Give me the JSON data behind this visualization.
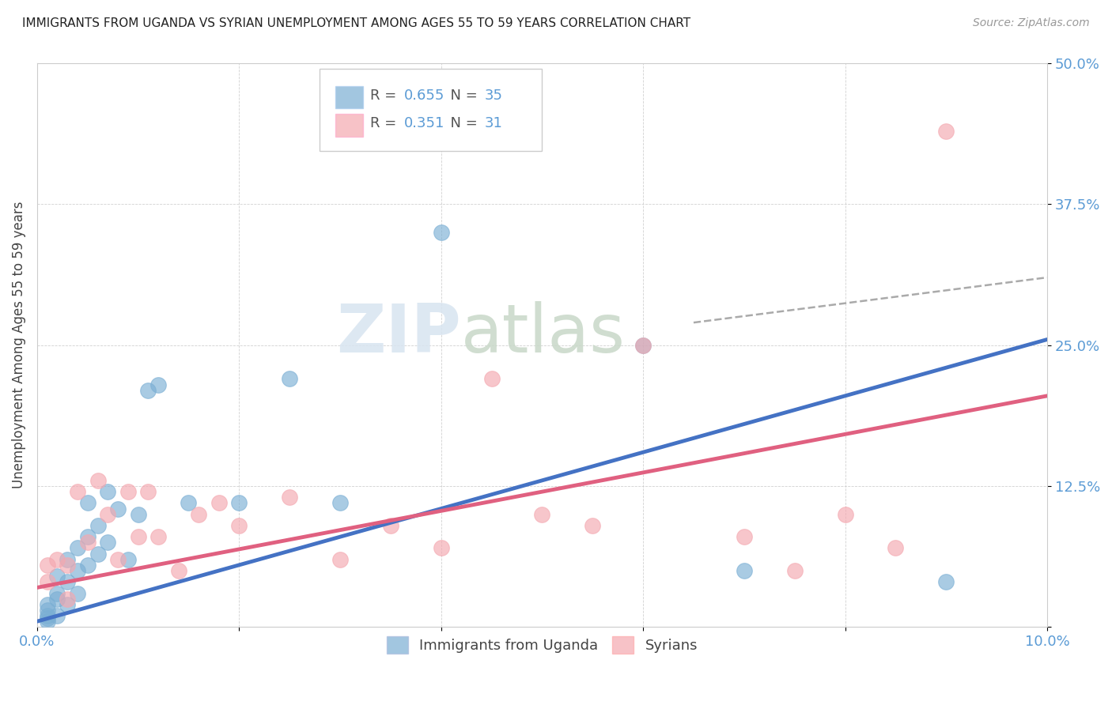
{
  "title": "IMMIGRANTS FROM UGANDA VS SYRIAN UNEMPLOYMENT AMONG AGES 55 TO 59 YEARS CORRELATION CHART",
  "source": "Source: ZipAtlas.com",
  "ylabel": "Unemployment Among Ages 55 to 59 years",
  "xlim": [
    0.0,
    0.1
  ],
  "ylim": [
    0.0,
    0.5
  ],
  "xticks": [
    0.0,
    0.02,
    0.04,
    0.06,
    0.08,
    0.1
  ],
  "xticklabels": [
    "0.0%",
    "",
    "",
    "",
    "",
    "10.0%"
  ],
  "yticks": [
    0.0,
    0.125,
    0.25,
    0.375,
    0.5
  ],
  "yticklabels": [
    "",
    "12.5%",
    "25.0%",
    "37.5%",
    "50.0%"
  ],
  "legend1_r": "0.655",
  "legend1_n": "35",
  "legend2_r": "0.351",
  "legend2_n": "31",
  "blue_color": "#7BAFD4",
  "pink_color": "#F4A8B0",
  "blue_line_color": "#4472C4",
  "pink_line_color": "#E06080",
  "dashed_line_color": "#AAAAAA",
  "background_color": "#FFFFFF",
  "watermark_zip": "ZIP",
  "watermark_atlas": "atlas",
  "tick_color": "#5B9BD5",
  "uganda_x": [
    0.001,
    0.001,
    0.001,
    0.001,
    0.001,
    0.002,
    0.002,
    0.002,
    0.002,
    0.003,
    0.003,
    0.003,
    0.004,
    0.004,
    0.004,
    0.005,
    0.005,
    0.005,
    0.006,
    0.006,
    0.007,
    0.007,
    0.008,
    0.009,
    0.01,
    0.011,
    0.012,
    0.015,
    0.02,
    0.025,
    0.03,
    0.04,
    0.06,
    0.07,
    0.09
  ],
  "uganda_y": [
    0.01,
    0.02,
    0.005,
    0.015,
    0.008,
    0.03,
    0.045,
    0.025,
    0.01,
    0.06,
    0.04,
    0.02,
    0.07,
    0.05,
    0.03,
    0.11,
    0.08,
    0.055,
    0.09,
    0.065,
    0.12,
    0.075,
    0.105,
    0.06,
    0.1,
    0.21,
    0.215,
    0.11,
    0.11,
    0.22,
    0.11,
    0.35,
    0.25,
    0.05,
    0.04
  ],
  "syrian_x": [
    0.001,
    0.001,
    0.002,
    0.003,
    0.003,
    0.004,
    0.005,
    0.006,
    0.007,
    0.008,
    0.009,
    0.01,
    0.011,
    0.012,
    0.014,
    0.016,
    0.018,
    0.02,
    0.025,
    0.03,
    0.035,
    0.04,
    0.045,
    0.05,
    0.055,
    0.06,
    0.07,
    0.075,
    0.08,
    0.085,
    0.09
  ],
  "syrian_y": [
    0.04,
    0.055,
    0.06,
    0.055,
    0.025,
    0.12,
    0.075,
    0.13,
    0.1,
    0.06,
    0.12,
    0.08,
    0.12,
    0.08,
    0.05,
    0.1,
    0.11,
    0.09,
    0.115,
    0.06,
    0.09,
    0.07,
    0.22,
    0.1,
    0.09,
    0.25,
    0.08,
    0.05,
    0.1,
    0.07,
    0.44
  ],
  "blue_line_x0": 0.0,
  "blue_line_y0": 0.005,
  "blue_line_x1": 0.1,
  "blue_line_y1": 0.255,
  "pink_line_x0": 0.0,
  "pink_line_y0": 0.035,
  "pink_line_x1": 0.1,
  "pink_line_y1": 0.205,
  "dash_line_x0": 0.065,
  "dash_line_y0": 0.27,
  "dash_line_x1": 0.1,
  "dash_line_y1": 0.31
}
